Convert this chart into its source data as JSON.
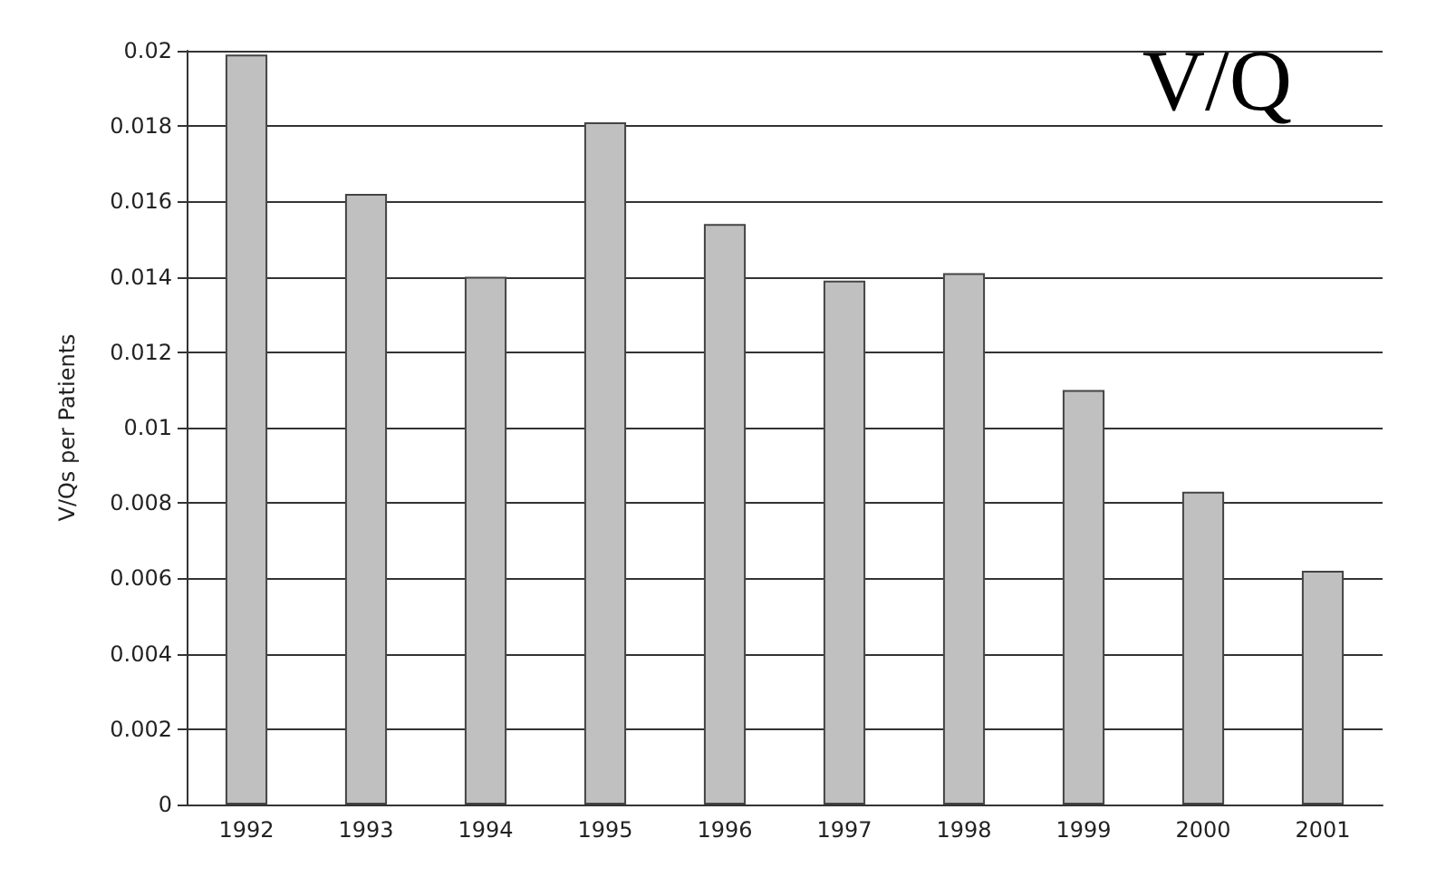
{
  "chart_data": {
    "type": "bar",
    "title": "V/Q",
    "ylabel": "V/Qs per Patients",
    "categories": [
      "1992",
      "1993",
      "1994",
      "1995",
      "1996",
      "1997",
      "1998",
      "1999",
      "2000",
      "2001"
    ],
    "values": [
      0.0199,
      0.0162,
      0.014,
      0.0181,
      0.0154,
      0.0139,
      0.0141,
      0.011,
      0.0083,
      0.0062
    ],
    "color": "#c0c0c0",
    "ylim": [
      0,
      0.02
    ],
    "yticks": [
      0,
      0.002,
      0.004,
      0.006,
      0.008,
      0.01,
      0.012,
      0.014,
      0.016,
      0.018,
      0.02
    ],
    "grid": "y"
  }
}
